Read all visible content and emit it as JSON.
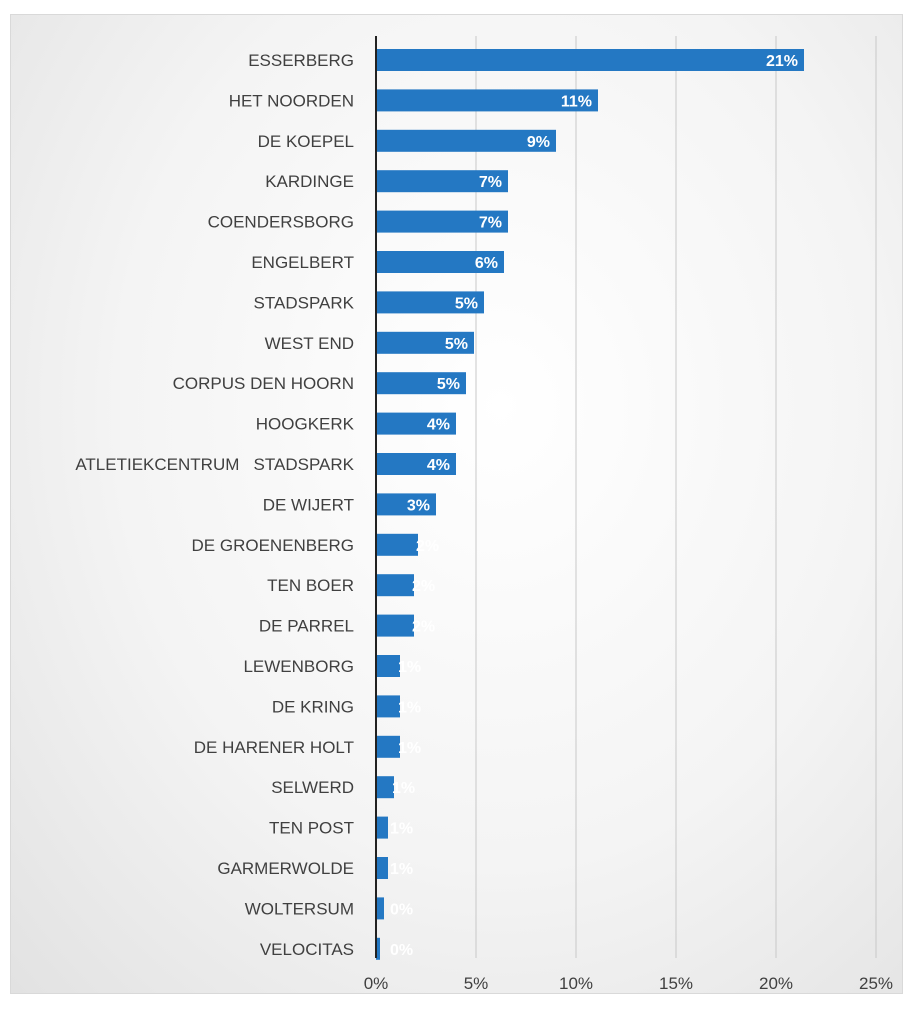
{
  "chart_data": {
    "type": "bar",
    "orientation": "horizontal",
    "title": "",
    "xlabel": "",
    "ylabel": "",
    "categories": [
      "ESSERBERG",
      "HET NOORDEN",
      "DE KOEPEL",
      "KARDINGE",
      "COENDERSBORG",
      "ENGELBERT",
      "STADSPARK",
      "WEST END",
      "CORPUS DEN HOORN",
      "HOOGKERK",
      "ATLETIEKCENTRUM   STADSPARK",
      "DE WIJERT",
      "DE GROENENBERG",
      "TEN BOER",
      "DE PARREL",
      "LEWENBORG",
      "DE KRING",
      "DE HARENER HOLT",
      "SELWERD",
      "TEN POST",
      "GARMERWOLDE",
      "WOLTERSUM",
      "VELOCITAS"
    ],
    "values": [
      21.4,
      11.1,
      9.0,
      6.6,
      6.6,
      6.4,
      5.4,
      4.9,
      4.5,
      4.0,
      4.0,
      3.0,
      2.1,
      1.9,
      1.9,
      1.2,
      1.2,
      1.2,
      0.9,
      0.6,
      0.6,
      0.4,
      0.2
    ],
    "data_labels": [
      "21%",
      "11%",
      "9%",
      "7%",
      "7%",
      "6%",
      "5%",
      "5%",
      "5%",
      "4%",
      "4%",
      "3%",
      "2%",
      "2%",
      "2%",
      "1%",
      "1%",
      "1%",
      "1%",
      "1%",
      "1%",
      "0%",
      "0%"
    ],
    "xlim": [
      0,
      25
    ],
    "xticks": [
      0,
      5,
      10,
      15,
      20,
      25
    ],
    "xtick_labels": [
      "0%",
      "5%",
      "10%",
      "15%",
      "20%",
      "25%"
    ],
    "grid": true,
    "legend": "none",
    "colors": {
      "bar": "#2478c3",
      "grid": "#c8c8c8",
      "axis": "#222222",
      "label_text": "#404040",
      "data_label": "#ffffff"
    }
  }
}
